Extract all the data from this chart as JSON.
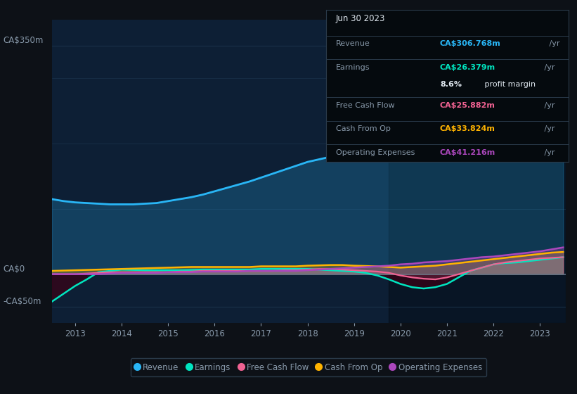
{
  "bg_color": "#0d1117",
  "plot_bg_color": "#0d1f35",
  "grid_color": "#1e3850",
  "text_color": "#8899aa",
  "title_color": "#ffffff",
  "years": [
    2012.5,
    2012.75,
    2013.0,
    2013.25,
    2013.5,
    2013.75,
    2014.0,
    2014.25,
    2014.5,
    2014.75,
    2015.0,
    2015.25,
    2015.5,
    2015.75,
    2016.0,
    2016.25,
    2016.5,
    2016.75,
    2017.0,
    2017.25,
    2017.5,
    2017.75,
    2018.0,
    2018.25,
    2018.5,
    2018.75,
    2019.0,
    2019.25,
    2019.5,
    2019.75,
    2020.0,
    2020.25,
    2020.5,
    2020.75,
    2021.0,
    2021.25,
    2021.5,
    2021.75,
    2022.0,
    2022.25,
    2022.5,
    2022.75,
    2023.0,
    2023.25,
    2023.5
  ],
  "revenue": [
    115,
    112,
    110,
    109,
    108,
    107,
    107,
    107,
    108,
    109,
    112,
    115,
    118,
    122,
    127,
    132,
    137,
    142,
    148,
    154,
    160,
    166,
    172,
    176,
    180,
    183,
    185,
    185,
    184,
    183,
    183,
    184,
    186,
    190,
    196,
    205,
    215,
    228,
    242,
    255,
    268,
    282,
    297,
    306,
    307
  ],
  "earnings": [
    -42,
    -30,
    -18,
    -8,
    3,
    5,
    7,
    6.5,
    6,
    6,
    6,
    6,
    6.5,
    7,
    7,
    7,
    7,
    7,
    8,
    8,
    8,
    8,
    8,
    7,
    6,
    5,
    4,
    2,
    -2,
    -8,
    -15,
    -20,
    -22,
    -20,
    -15,
    -5,
    5,
    10,
    15,
    17,
    18,
    20,
    22,
    24,
    26
  ],
  "free_cash_flow": [
    0,
    0,
    0,
    1,
    2,
    3,
    3,
    3,
    3,
    3,
    3,
    4,
    4,
    5,
    5,
    5,
    5,
    5,
    5,
    5,
    6,
    6,
    7,
    8,
    8,
    7,
    6,
    5,
    4,
    2,
    -2,
    -5,
    -7,
    -8,
    -5,
    0,
    5,
    10,
    15,
    18,
    20,
    22,
    24,
    25,
    26
  ],
  "cash_from_op": [
    5,
    5.5,
    6,
    6.5,
    7,
    7.5,
    8,
    8.5,
    9,
    9.5,
    10,
    10.5,
    11,
    11,
    11,
    11,
    11,
    11,
    12,
    12,
    12,
    12,
    13,
    13.5,
    14,
    14,
    13,
    12.5,
    12,
    11,
    10,
    11,
    12,
    13,
    15,
    17,
    19,
    21,
    23,
    25,
    27,
    29,
    31,
    33,
    34
  ],
  "operating_expenses": [
    0,
    0,
    0,
    0,
    0,
    1,
    2,
    2,
    2,
    2,
    3,
    3,
    3,
    4,
    4,
    4,
    4,
    5,
    5,
    5,
    5,
    5,
    6,
    7,
    8,
    9,
    10,
    11,
    12,
    13,
    15,
    16,
    18,
    19,
    20,
    22,
    24,
    26,
    27,
    29,
    31,
    33,
    35,
    38,
    41
  ],
  "revenue_color": "#29b6f6",
  "earnings_color": "#00e5c0",
  "free_cash_flow_color": "#f06292",
  "cash_from_op_color": "#ffb300",
  "operating_expenses_color": "#ab47bc",
  "zero_line_color": "#607080",
  "ylim_min": -75,
  "ylim_max": 390,
  "ytick_350_label": "CA$350m",
  "ytick_0_label": "CA$0",
  "ytick_neg50_label": "-CA$50m",
  "xticks": [
    2013,
    2014,
    2015,
    2016,
    2017,
    2018,
    2019,
    2020,
    2021,
    2022,
    2023
  ],
  "xmin": 2012.5,
  "xmax": 2023.55,
  "dark_rect_x": 2019.75,
  "info_box": {
    "date": "Jun 30 2023",
    "revenue_label": "Revenue",
    "revenue_value": "CA$306.768m",
    "revenue_yr": " /yr",
    "revenue_color": "#29b6f6",
    "earnings_label": "Earnings",
    "earnings_value": "CA$26.379m",
    "earnings_yr": " /yr",
    "earnings_color": "#00e5c0",
    "margin_bold": "8.6%",
    "margin_rest": " profit margin",
    "free_cash_label": "Free Cash Flow",
    "free_cash_value": "CA$25.882m",
    "free_cash_yr": " /yr",
    "free_cash_color": "#f06292",
    "cash_op_label": "Cash From Op",
    "cash_op_value": "CA$33.824m",
    "cash_op_yr": " /yr",
    "cash_op_color": "#ffb300",
    "op_exp_label": "Operating Expenses",
    "op_exp_value": "CA$41.216m",
    "op_exp_yr": " /yr",
    "op_exp_color": "#ab47bc",
    "yr_color": "#8899aa",
    "box_bg": "#050a0e",
    "box_border": "#2a3a4a",
    "label_color": "#8899aa",
    "white_color": "#e0e8f0"
  },
  "legend_items": [
    {
      "label": "Revenue",
      "color": "#29b6f6"
    },
    {
      "label": "Earnings",
      "color": "#00e5c0"
    },
    {
      "label": "Free Cash Flow",
      "color": "#f06292"
    },
    {
      "label": "Cash From Op",
      "color": "#ffb300"
    },
    {
      "label": "Operating Expenses",
      "color": "#ab47bc"
    }
  ]
}
